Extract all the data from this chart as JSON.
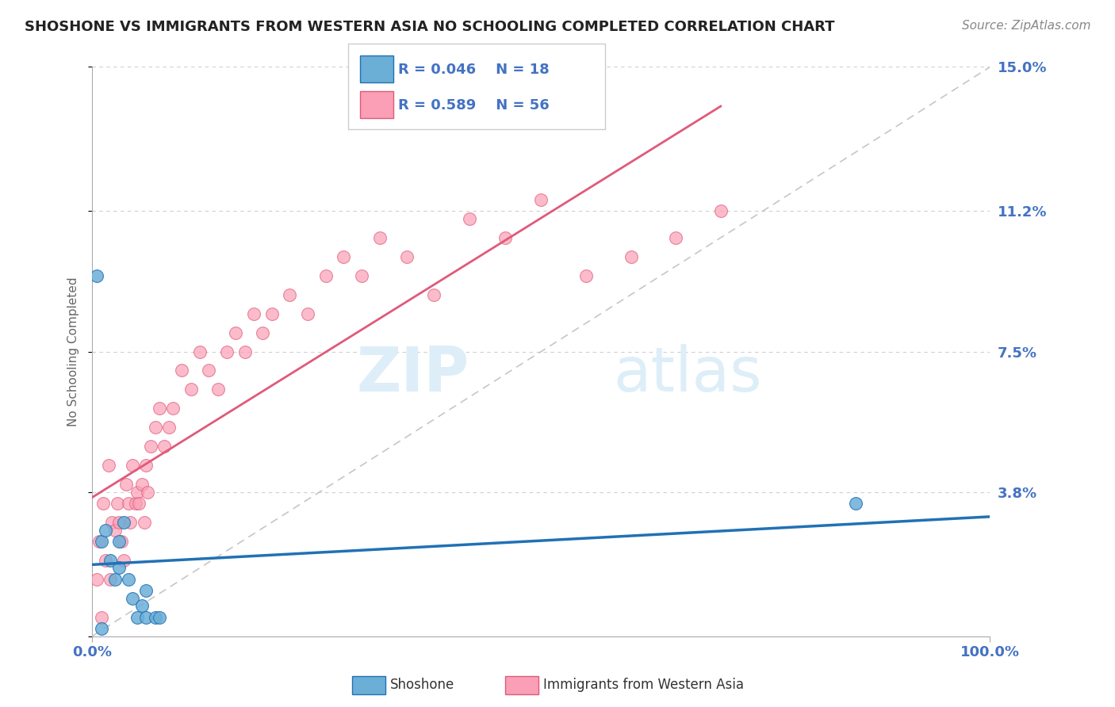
{
  "title": "SHOSHONE VS IMMIGRANTS FROM WESTERN ASIA NO SCHOOLING COMPLETED CORRELATION CHART",
  "source": "Source: ZipAtlas.com",
  "ylabel": "No Schooling Completed",
  "xlim": [
    0,
    100
  ],
  "ylim": [
    0,
    15
  ],
  "yticks": [
    0,
    3.8,
    7.5,
    11.2,
    15.0
  ],
  "ytick_labels": [
    "",
    "3.8%",
    "7.5%",
    "11.2%",
    "15.0%"
  ],
  "xtick_labels": [
    "0.0%",
    "100.0%"
  ],
  "legend_r1": "R = 0.046",
  "legend_n1": "N = 18",
  "legend_r2": "R = 0.589",
  "legend_n2": "N = 56",
  "shoshone_color": "#6baed6",
  "immigrants_color": "#fa9fb5",
  "shoshone_line_color": "#2171b5",
  "immigrants_line_color": "#e05a7a",
  "diagonal_color": "#c0c0c0",
  "grid_color": "#d0d0d0",
  "title_color": "#222222",
  "axis_label_color": "#666666",
  "tick_color": "#4472c4",
  "shoshone_x": [
    0.5,
    1.0,
    1.5,
    2.0,
    2.5,
    3.0,
    3.0,
    3.5,
    4.0,
    4.5,
    5.0,
    5.5,
    6.0,
    6.0,
    7.0,
    7.5,
    85.0,
    1.0
  ],
  "shoshone_y": [
    9.5,
    2.5,
    2.8,
    2.0,
    1.5,
    1.8,
    2.5,
    3.0,
    1.5,
    1.0,
    0.5,
    0.8,
    1.2,
    0.5,
    0.5,
    0.5,
    3.5,
    0.2
  ],
  "immigrants_x": [
    0.5,
    0.8,
    1.0,
    1.2,
    1.5,
    1.8,
    2.0,
    2.2,
    2.5,
    2.8,
    3.0,
    3.2,
    3.5,
    3.8,
    4.0,
    4.2,
    4.5,
    4.8,
    5.0,
    5.2,
    5.5,
    5.8,
    6.0,
    6.2,
    6.5,
    7.0,
    7.5,
    8.0,
    8.5,
    9.0,
    10.0,
    11.0,
    12.0,
    13.0,
    14.0,
    15.0,
    16.0,
    17.0,
    18.0,
    19.0,
    20.0,
    22.0,
    24.0,
    26.0,
    28.0,
    30.0,
    32.0,
    35.0,
    38.0,
    42.0,
    46.0,
    50.0,
    55.0,
    60.0,
    65.0,
    70.0
  ],
  "immigrants_y": [
    1.5,
    2.5,
    0.5,
    3.5,
    2.0,
    4.5,
    1.5,
    3.0,
    2.8,
    3.5,
    3.0,
    2.5,
    2.0,
    4.0,
    3.5,
    3.0,
    4.5,
    3.5,
    3.8,
    3.5,
    4.0,
    3.0,
    4.5,
    3.8,
    5.0,
    5.5,
    6.0,
    5.0,
    5.5,
    6.0,
    7.0,
    6.5,
    7.5,
    7.0,
    6.5,
    7.5,
    8.0,
    7.5,
    8.5,
    8.0,
    8.5,
    9.0,
    8.5,
    9.5,
    10.0,
    9.5,
    10.5,
    10.0,
    9.0,
    11.0,
    10.5,
    11.5,
    9.5,
    10.0,
    10.5,
    11.2
  ],
  "background_color": "#ffffff",
  "watermark_text1": "ZIP",
  "watermark_text2": "atlas",
  "watermark_color": "#ddeef8"
}
